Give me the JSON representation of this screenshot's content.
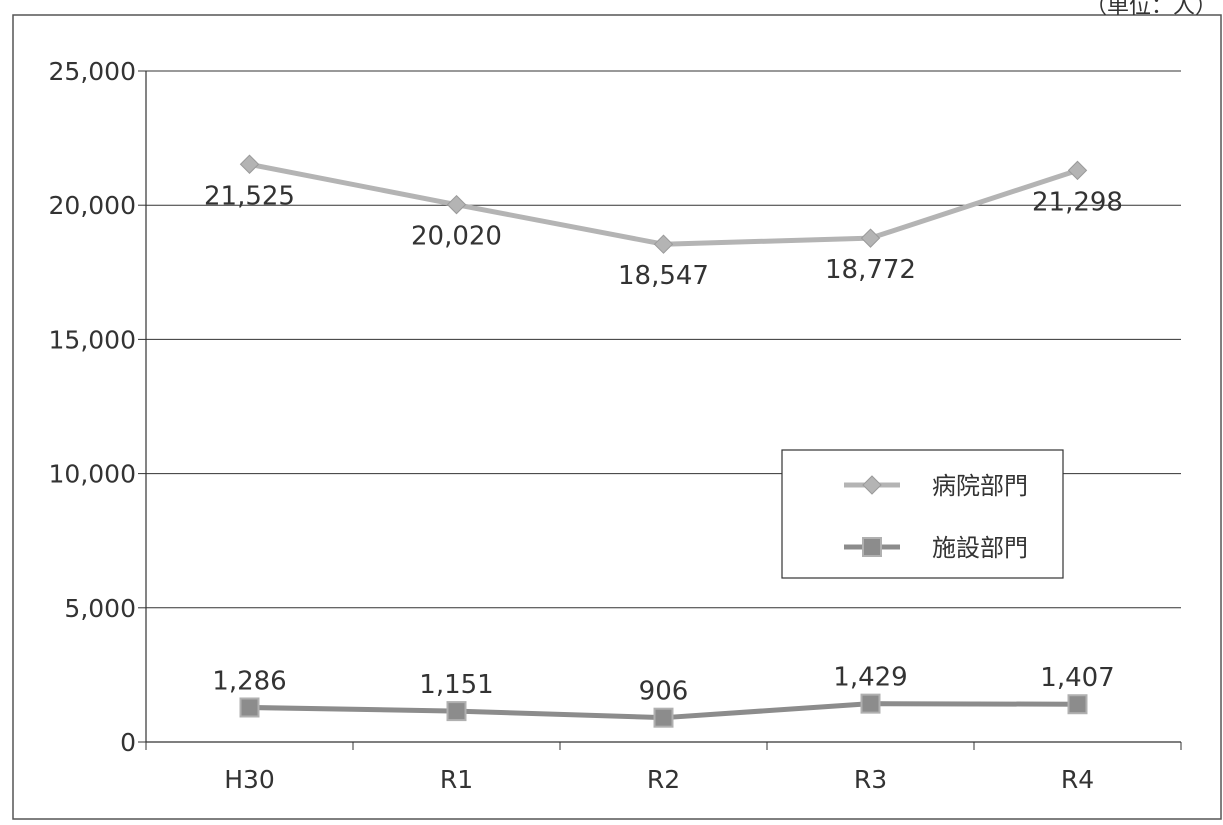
{
  "unit_note": "（単位：人）",
  "chart_data": {
    "type": "line",
    "title": "",
    "xlabel": "",
    "ylabel": "",
    "categories": [
      "H30",
      "R1",
      "R2",
      "R3",
      "R4"
    ],
    "ylim": [
      0,
      25000
    ],
    "yticks": [
      0,
      5000,
      10000,
      15000,
      20000,
      25000
    ],
    "ytick_labels": [
      "0",
      "5,000",
      "10,000",
      "15,000",
      "20,000",
      "25,000"
    ],
    "grid": true,
    "legend_position": "right-middle",
    "series": [
      {
        "name": "病院部門",
        "values": [
          21525,
          20020,
          18547,
          18772,
          21298
        ],
        "labels": [
          "21,525",
          "20,020",
          "18,547",
          "18,772",
          "21,298"
        ],
        "marker": "diamond",
        "color": "#b4b4b4"
      },
      {
        "name": "施設部門",
        "values": [
          1286,
          1151,
          906,
          1429,
          1407
        ],
        "labels": [
          "1,286",
          "1,151",
          "906",
          "1,429",
          "1,407"
        ],
        "marker": "square",
        "color": "#8c8c8c"
      }
    ]
  }
}
